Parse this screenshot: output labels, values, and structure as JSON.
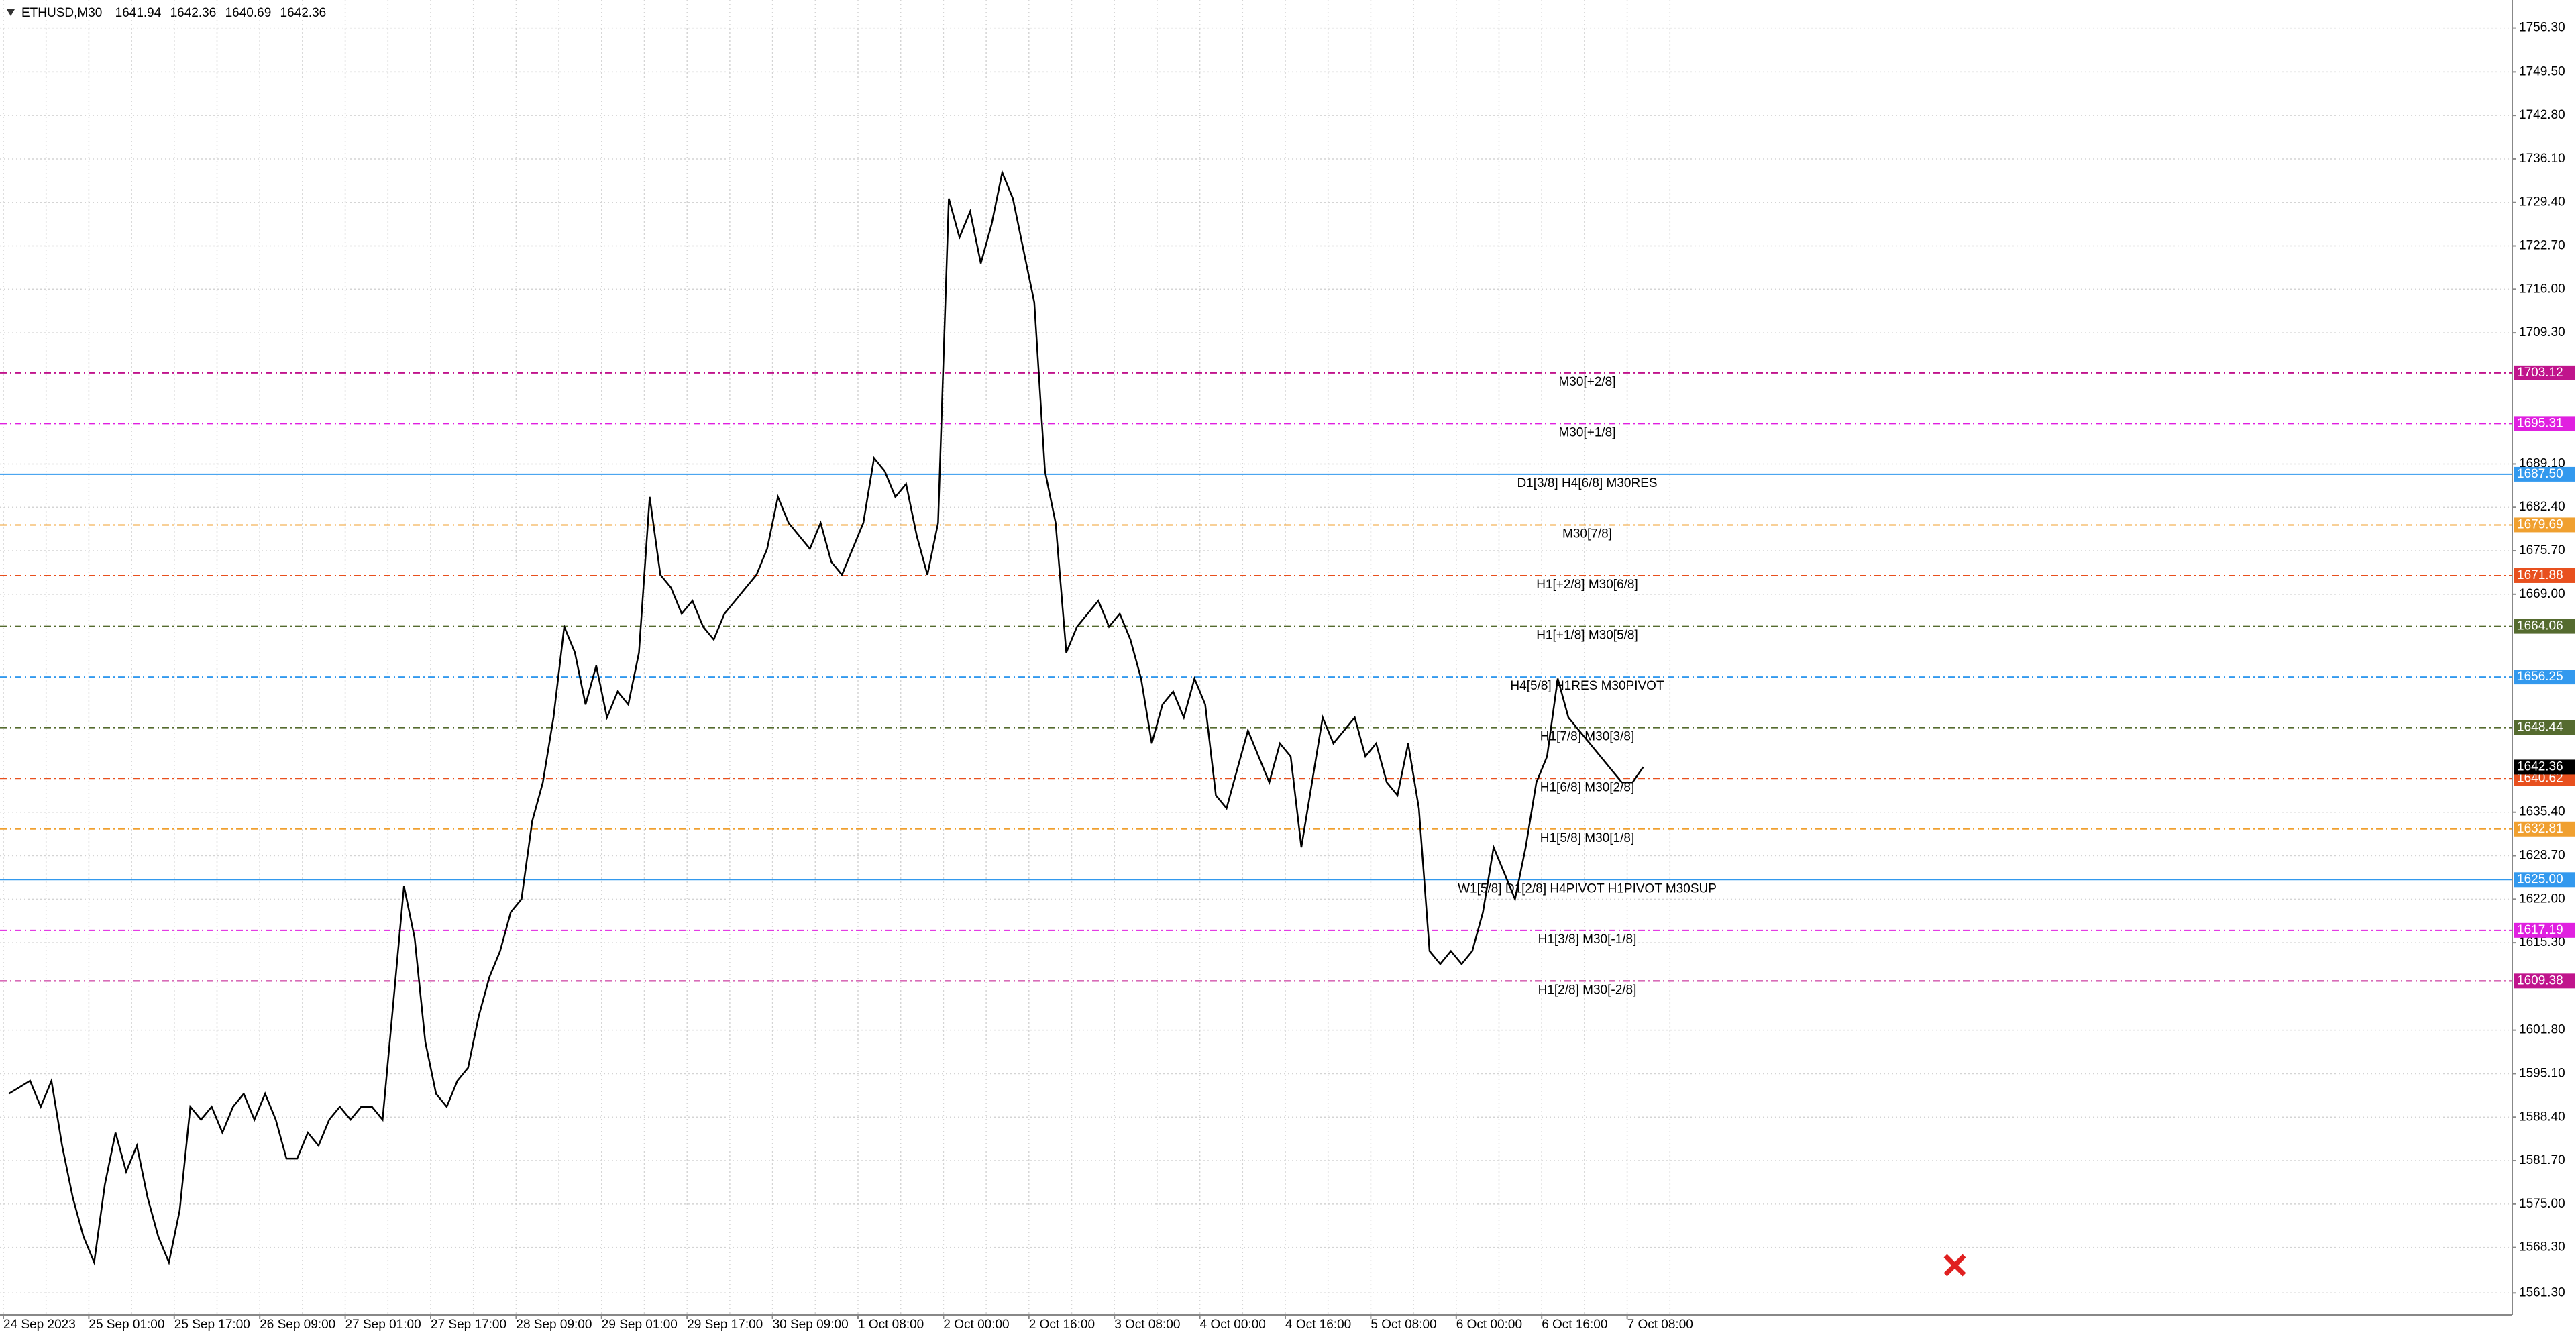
{
  "chart_data": {
    "type": "line",
    "symbol": "ETHUSD,M30",
    "ohlc": [
      1641.94,
      1642.36,
      1640.69,
      1642.36
    ],
    "ylim": [
      1561.3,
      1756.3
    ],
    "yticks": [
      {
        "value": 1756.3,
        "label": "1756.30"
      },
      {
        "value": 1749.5,
        "label": "1749.50"
      },
      {
        "value": 1742.8,
        "label": "1742.80"
      },
      {
        "value": 1736.1,
        "label": "1736.10"
      },
      {
        "value": 1729.4,
        "label": "1729.40"
      },
      {
        "value": 1722.7,
        "label": "1722.70"
      },
      {
        "value": 1716.0,
        "label": "1716.00"
      },
      {
        "value": 1709.3,
        "label": "1709.30"
      },
      {
        "value": 1689.1,
        "label": "1689.10"
      },
      {
        "value": 1682.4,
        "label": "1682.40"
      },
      {
        "value": 1675.7,
        "label": "1675.70"
      },
      {
        "value": 1669.0,
        "label": "1669.00"
      },
      {
        "value": 1635.4,
        "label": "1635.40"
      },
      {
        "value": 1628.7,
        "label": "1628.70"
      },
      {
        "value": 1622.0,
        "label": "1622.00"
      },
      {
        "value": 1615.3,
        "label": "1615.30"
      },
      {
        "value": 1601.8,
        "label": "1601.80"
      },
      {
        "value": 1595.1,
        "label": "1595.10"
      },
      {
        "value": 1588.4,
        "label": "1588.40"
      },
      {
        "value": 1581.7,
        "label": "1581.70"
      },
      {
        "value": 1575.0,
        "label": "1575.00"
      },
      {
        "value": 1568.3,
        "label": "1568.30"
      },
      {
        "value": 1561.3,
        "label": "1561.30"
      }
    ],
    "grid": true,
    "categories": [
      "24 Sep 2023",
      "25 Sep 01:00",
      "25 Sep 17:00",
      "26 Sep 09:00",
      "27 Sep 01:00",
      "27 Sep 17:00",
      "28 Sep 09:00",
      "29 Sep 01:00",
      "29 Sep 17:00",
      "30 Sep 09:00",
      "1 Oct 08:00",
      "2 Oct 00:00",
      "2 Oct 16:00",
      "3 Oct 08:00",
      "4 Oct 00:00",
      "4 Oct 16:00",
      "5 Oct 08:00",
      "6 Oct 00:00",
      "6 Oct 16:00",
      "7 Oct 08:00"
    ],
    "series": [
      {
        "name": "ETHUSD,M30",
        "color": "#000000",
        "values": [
          [
            1592,
            1593,
            1594,
            1590,
            1594,
            1584,
            1576,
            1570
          ],
          [
            1566,
            1578,
            1586,
            1580,
            1584,
            1576,
            1570,
            1566
          ],
          [
            1574,
            1590,
            1588,
            1590,
            1586,
            1590,
            1592,
            1588
          ],
          [
            1592,
            1588,
            1582,
            1582,
            1586,
            1584,
            1588,
            1590
          ],
          [
            1588,
            1590,
            1590,
            1588,
            1606,
            1624,
            1616,
            1600
          ],
          [
            1592,
            1590,
            1594,
            1596,
            1604,
            1610,
            1614,
            1620
          ],
          [
            1622,
            1634,
            1640,
            1650,
            1664,
            1660,
            1652,
            1658
          ],
          [
            1650,
            1654,
            1652,
            1660,
            1684,
            1672,
            1670,
            1666
          ],
          [
            1668,
            1664,
            1662,
            1666,
            1668,
            1670,
            1672,
            1676
          ],
          [
            1684,
            1680,
            1678,
            1676,
            1680,
            1674,
            1672,
            1676
          ],
          [
            1680,
            1690,
            1688,
            1684,
            1686,
            1678,
            1672,
            1680
          ],
          [
            1730,
            1724,
            1728,
            1720,
            1726,
            1734,
            1730,
            1722
          ],
          [
            1714,
            1688,
            1680,
            1660,
            1664,
            1666,
            1668,
            1664
          ],
          [
            1666,
            1662,
            1656,
            1646,
            1652,
            1654,
            1650,
            1656
          ],
          [
            1652,
            1638,
            1636,
            1642,
            1648,
            1644,
            1640,
            1646
          ],
          [
            1644,
            1630,
            1640,
            1650,
            1646,
            1648,
            1650,
            1644
          ],
          [
            1646,
            1640,
            1638,
            1646,
            1636,
            1614,
            1612,
            1614
          ],
          [
            1612,
            1614,
            1620,
            1630,
            1626,
            1622,
            1630,
            1640
          ],
          [
            1644,
            1656,
            1650,
            1648,
            1646,
            1644,
            1642,
            1640
          ],
          [
            1640,
            1642.36
          ]
        ]
      }
    ],
    "levels": [
      {
        "label": "M30[+2/8]",
        "value": 1703.12,
        "color": "#c0148c",
        "style": "dashdot"
      },
      {
        "label": "M30[+1/8]",
        "value": 1695.31,
        "color": "#e020e0",
        "style": "dashdot"
      },
      {
        "label": "D1[3/8] H4[6/8] M30RES",
        "value": 1687.5,
        "value_label": "1687.50",
        "color": "#3399ee",
        "style": "solid"
      },
      {
        "label": "M30[7/8]",
        "value": 1679.69,
        "color": "#f0a030",
        "style": "dashdot"
      },
      {
        "label": "H1[+2/8] M30[6/8]",
        "value": 1671.88,
        "color": "#e8501e",
        "style": "dashdot"
      },
      {
        "label": "H1[+1/8] M30[5/8]",
        "value": 1664.06,
        "color": "#556b2f",
        "style": "dashdot"
      },
      {
        "label": "H4[5/8] H1RES M30PIVOT",
        "value": 1656.25,
        "color": "#3399ee",
        "style": "dashdot"
      },
      {
        "label": "H1[7/8] M30[3/8]",
        "value": 1648.44,
        "color": "#556b2f",
        "style": "dashdot"
      },
      {
        "label": "H1[6/8] M30[2/8]",
        "value": 1640.62,
        "color": "#e8501e",
        "style": "dashdot"
      },
      {
        "label": "H1[5/8] M30[1/8]",
        "value": 1632.81,
        "color": "#f0a030",
        "style": "dashdot"
      },
      {
        "label": "W1[5/8] D1[2/8] H4PIVOT H1PIVOT M30SUP",
        "value": 1625,
        "value_label": "1625.00",
        "color": "#3399ee",
        "style": "solid"
      },
      {
        "label": "H1[3/8] M30[-1/8]",
        "value": 1617.19,
        "color": "#e020e0",
        "style": "dashdot"
      },
      {
        "label": "H1[2/8] M30[-2/8]",
        "value": 1609.38,
        "color": "#c0148c",
        "style": "dashdot"
      }
    ]
  }
}
